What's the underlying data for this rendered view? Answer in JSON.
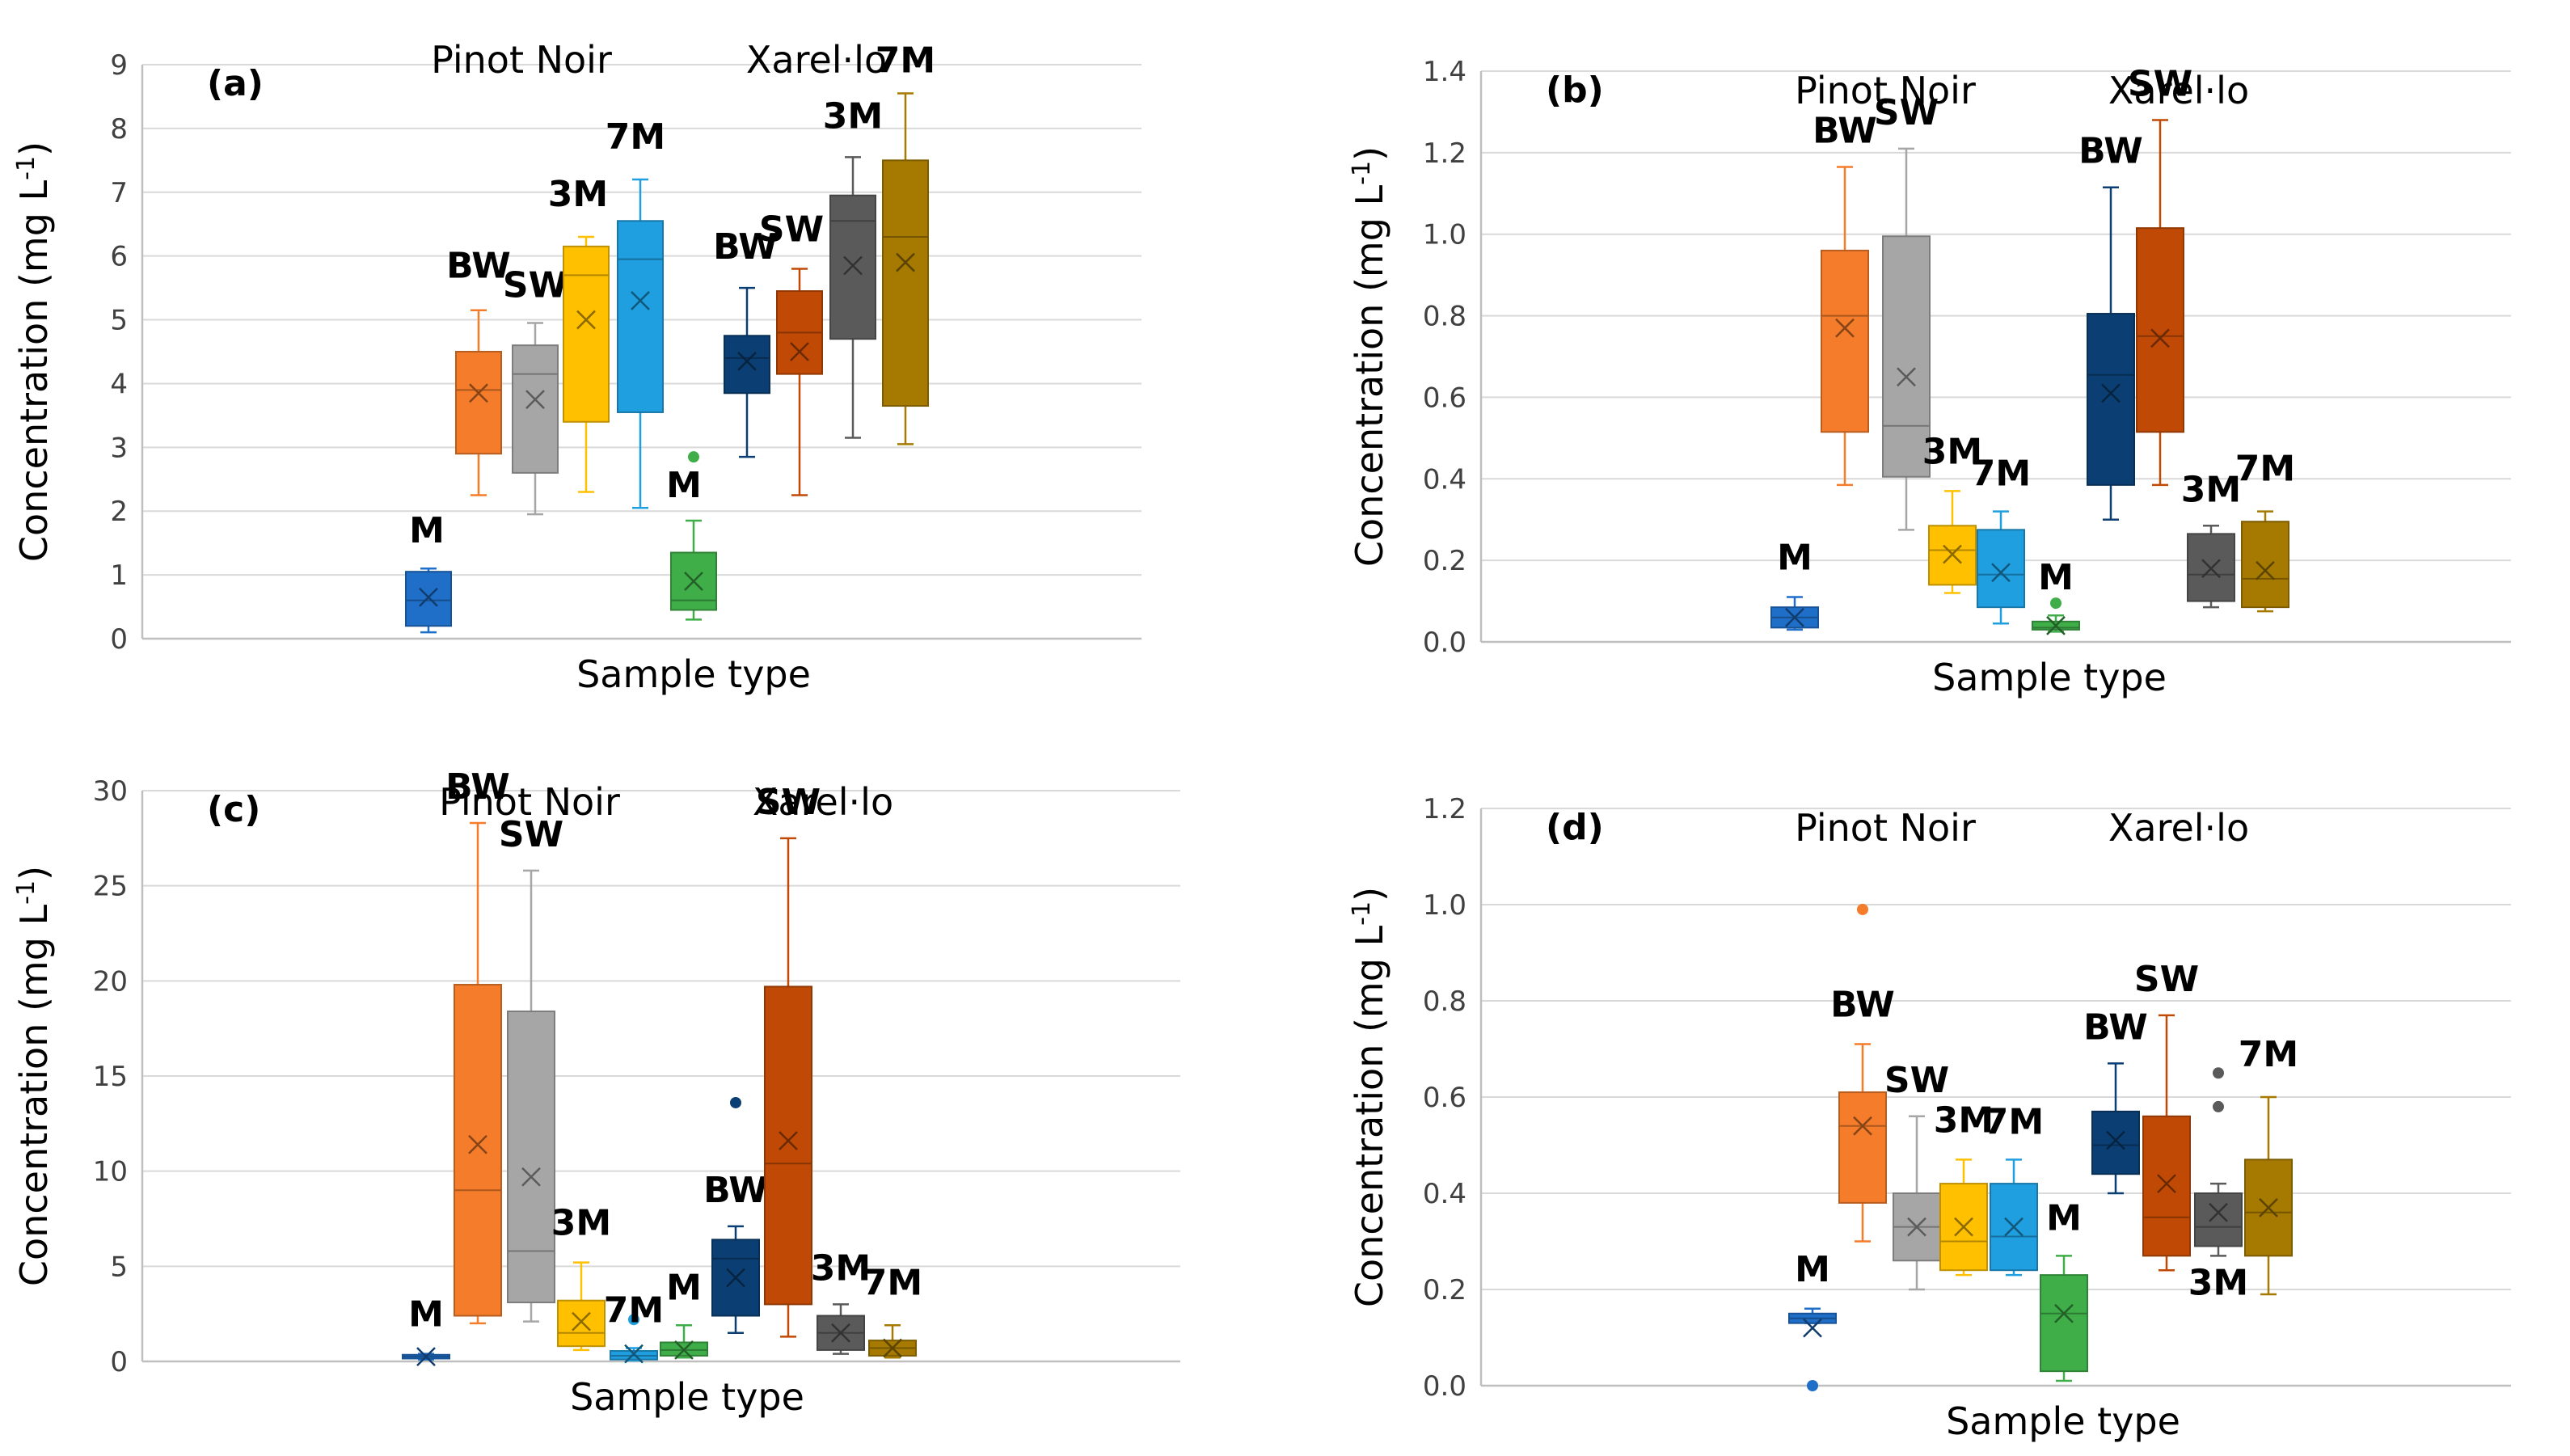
{
  "figure": {
    "colors": {
      "PN-M": "#1f6fc8",
      "PN-BW": "#f47c2a",
      "PN-SW": "#a6a6a6",
      "PN-3M": "#ffc000",
      "PN-7M": "#1f9fe0",
      "X-M": "#3fae49",
      "X-BW": "#0b3f73",
      "X-SW": "#c04a05",
      "X-3M": "#5a5a5a",
      "X-7M": "#a67a00"
    },
    "axis_line_color": "#bfbfbf",
    "grid_color": "#d9d9d9"
  },
  "chart_data": [
    {
      "id": "a",
      "type": "box",
      "panel_label": "(a)",
      "ylabel": "Concentration (mg L-1)",
      "ylabel_parts": [
        "Concentration (mg L",
        "-1",
        ")"
      ],
      "xlabel": "Sample type",
      "group_titles": [
        "Pinot Noir",
        "Xarel·lo"
      ],
      "ylim": [
        0,
        9
      ],
      "yticks": [
        0,
        1,
        2,
        3,
        4,
        5,
        6,
        7,
        8,
        9
      ],
      "ytick_labels": [
        "0",
        "1",
        "2",
        "3",
        "4",
        "5",
        "6",
        "7",
        "8",
        "9"
      ],
      "boxes": [
        {
          "key": "PN-M",
          "label": "M",
          "min": 0.1,
          "q1": 0.2,
          "median": 0.6,
          "q3": 1.05,
          "max": 1.1,
          "mean": 0.65,
          "outliers": []
        },
        {
          "key": "PN-BW",
          "label": "BW",
          "min": 2.25,
          "q1": 2.9,
          "median": 3.9,
          "q3": 4.5,
          "max": 5.15,
          "mean": 3.85,
          "outliers": []
        },
        {
          "key": "PN-SW",
          "label": "SW",
          "min": 1.95,
          "q1": 2.6,
          "median": 4.15,
          "q3": 4.6,
          "max": 4.95,
          "mean": 3.75,
          "outliers": []
        },
        {
          "key": "PN-3M",
          "label": "3M",
          "min": 2.3,
          "q1": 3.4,
          "median": 5.7,
          "q3": 6.15,
          "max": 6.3,
          "mean": 5.0,
          "outliers": []
        },
        {
          "key": "PN-7M",
          "label": "7M",
          "min": 2.05,
          "q1": 3.55,
          "median": 5.95,
          "q3": 6.55,
          "max": 7.2,
          "mean": 5.3,
          "outliers": []
        },
        {
          "key": "X-M",
          "label": "M",
          "min": 0.3,
          "q1": 0.45,
          "median": 0.6,
          "q3": 1.35,
          "max": 1.85,
          "mean": 0.9,
          "outliers": [
            2.85
          ]
        },
        {
          "key": "X-BW",
          "label": "BW",
          "min": 2.85,
          "q1": 3.85,
          "median": 4.4,
          "q3": 4.75,
          "max": 5.5,
          "mean": 4.35,
          "outliers": []
        },
        {
          "key": "X-SW",
          "label": "SW",
          "min": 2.25,
          "q1": 4.15,
          "median": 4.8,
          "q3": 5.45,
          "max": 5.8,
          "mean": 4.5,
          "outliers": []
        },
        {
          "key": "X-3M",
          "label": "3M",
          "min": 3.15,
          "q1": 4.7,
          "median": 6.55,
          "q3": 6.95,
          "max": 7.55,
          "mean": 5.85,
          "outliers": []
        },
        {
          "key": "X-7M",
          "label": "7M",
          "min": 3.05,
          "q1": 3.65,
          "median": 6.3,
          "q3": 7.5,
          "max": 8.55,
          "mean": 5.9,
          "outliers": []
        }
      ]
    },
    {
      "id": "b",
      "type": "box",
      "panel_label": "(b)",
      "ylabel": "Concentration (mg L-1)",
      "ylabel_parts": [
        "Concentration (mg L",
        "-1",
        ")"
      ],
      "xlabel": "Sample type",
      "group_titles": [
        "Pinot Noir",
        "Xarel·lo"
      ],
      "ylim": [
        0,
        1.4
      ],
      "yticks": [
        0,
        0.2,
        0.4,
        0.6,
        0.8,
        1.0,
        1.2,
        1.4
      ],
      "ytick_labels": [
        "0.0",
        "0.2",
        "0.4",
        "0.6",
        "0.8",
        "1.0",
        "1.2",
        "1.4"
      ],
      "boxes": [
        {
          "key": "PN-M",
          "label": "M",
          "min": 0.03,
          "q1": 0.035,
          "median": 0.06,
          "q3": 0.085,
          "max": 0.11,
          "mean": 0.06,
          "outliers": []
        },
        {
          "key": "PN-BW",
          "label": "BW",
          "min": 0.385,
          "q1": 0.515,
          "median": 0.8,
          "q3": 0.96,
          "max": 1.165,
          "mean": 0.77,
          "outliers": []
        },
        {
          "key": "PN-SW",
          "label": "SW",
          "min": 0.275,
          "q1": 0.405,
          "median": 0.53,
          "q3": 0.995,
          "max": 1.21,
          "mean": 0.65,
          "outliers": []
        },
        {
          "key": "PN-3M",
          "label": "3M",
          "min": 0.12,
          "q1": 0.14,
          "median": 0.225,
          "q3": 0.285,
          "max": 0.37,
          "mean": 0.215,
          "outliers": []
        },
        {
          "key": "PN-7M",
          "label": "7M",
          "min": 0.045,
          "q1": 0.085,
          "median": 0.165,
          "q3": 0.275,
          "max": 0.32,
          "mean": 0.17,
          "outliers": []
        },
        {
          "key": "X-M",
          "label": "M",
          "min": 0.025,
          "q1": 0.03,
          "median": 0.035,
          "q3": 0.05,
          "max": 0.065,
          "mean": 0.04,
          "outliers": [
            0.095
          ]
        },
        {
          "key": "X-BW",
          "label": "BW",
          "min": 0.3,
          "q1": 0.385,
          "median": 0.655,
          "q3": 0.805,
          "max": 1.115,
          "mean": 0.61,
          "outliers": []
        },
        {
          "key": "X-SW",
          "label": "SW",
          "min": 0.385,
          "q1": 0.515,
          "median": 0.75,
          "q3": 1.015,
          "max": 1.28,
          "mean": 0.745,
          "outliers": []
        },
        {
          "key": "X-3M",
          "label": "3M",
          "min": 0.085,
          "q1": 0.1,
          "median": 0.165,
          "q3": 0.265,
          "max": 0.285,
          "mean": 0.18,
          "outliers": []
        },
        {
          "key": "X-7M",
          "label": "7M",
          "min": 0.075,
          "q1": 0.085,
          "median": 0.155,
          "q3": 0.295,
          "max": 0.32,
          "mean": 0.175,
          "outliers": []
        }
      ]
    },
    {
      "id": "c",
      "type": "box",
      "panel_label": "(c)",
      "ylabel": "Concentration (mg L-1)",
      "ylabel_parts": [
        "Concentration (mg L",
        "-1",
        ")"
      ],
      "xlabel": "Sample type",
      "group_titles": [
        "Pinot Noir",
        "Xarel·lo"
      ],
      "ylim": [
        0,
        30
      ],
      "yticks": [
        0,
        5,
        10,
        15,
        20,
        25,
        30
      ],
      "ytick_labels": [
        "0",
        "5",
        "10",
        "15",
        "20",
        "25",
        "30"
      ],
      "boxes": [
        {
          "key": "PN-M",
          "label": "M",
          "min": 0.1,
          "q1": 0.15,
          "median": 0.25,
          "q3": 0.35,
          "max": 0.4,
          "mean": 0.25,
          "outliers": []
        },
        {
          "key": "PN-BW",
          "label": "BW",
          "min": 2.0,
          "q1": 2.4,
          "median": 9.0,
          "q3": 19.8,
          "max": 28.3,
          "mean": 11.4,
          "outliers": []
        },
        {
          "key": "PN-SW",
          "label": "SW",
          "min": 2.1,
          "q1": 3.1,
          "median": 5.8,
          "q3": 18.4,
          "max": 25.8,
          "mean": 9.7,
          "outliers": []
        },
        {
          "key": "PN-3M",
          "label": "3M",
          "min": 0.6,
          "q1": 0.8,
          "median": 1.5,
          "q3": 3.2,
          "max": 5.2,
          "mean": 2.1,
          "outliers": []
        },
        {
          "key": "PN-7M",
          "label": "7M",
          "min": 0.05,
          "q1": 0.1,
          "median": 0.3,
          "q3": 0.55,
          "max": 0.7,
          "mean": 0.4,
          "outliers": [
            2.2
          ]
        },
        {
          "key": "X-M",
          "label": "M",
          "min": 0.2,
          "q1": 0.3,
          "median": 0.6,
          "q3": 1.0,
          "max": 1.9,
          "mean": 0.6,
          "outliers": []
        },
        {
          "key": "X-BW",
          "label": "BW",
          "min": 1.5,
          "q1": 2.4,
          "median": 5.4,
          "q3": 6.4,
          "max": 7.1,
          "mean": 4.4,
          "outliers": [
            13.6
          ]
        },
        {
          "key": "X-SW",
          "label": "SW",
          "min": 1.3,
          "q1": 3.0,
          "median": 10.4,
          "q3": 19.7,
          "max": 27.5,
          "mean": 11.6,
          "outliers": []
        },
        {
          "key": "X-3M",
          "label": "3M",
          "min": 0.4,
          "q1": 0.6,
          "median": 1.5,
          "q3": 2.4,
          "max": 3.0,
          "mean": 1.5,
          "outliers": []
        },
        {
          "key": "X-7M",
          "label": "7M",
          "min": 0.2,
          "q1": 0.3,
          "median": 0.7,
          "q3": 1.1,
          "max": 1.9,
          "mean": 0.7,
          "outliers": []
        }
      ]
    },
    {
      "id": "d",
      "type": "box",
      "panel_label": "(d)",
      "ylabel": "Concentration (mg L-1)",
      "ylabel_parts": [
        "Concentration (mg L",
        "-1",
        ")"
      ],
      "xlabel": "Sample type",
      "group_titles": [
        "Pinot Noir",
        "Xarel·lo"
      ],
      "ylim": [
        0,
        1.2
      ],
      "yticks": [
        0,
        0.2,
        0.4,
        0.6,
        0.8,
        1.0,
        1.2
      ],
      "ytick_labels": [
        "0.0",
        "0.2",
        "0.4",
        "0.6",
        "0.8",
        "1.0",
        "1.2"
      ],
      "boxes": [
        {
          "key": "PN-M",
          "label": "M",
          "min": 0.13,
          "q1": 0.13,
          "median": 0.14,
          "q3": 0.15,
          "max": 0.16,
          "mean": 0.12,
          "outliers": [
            0.0
          ]
        },
        {
          "key": "PN-BW",
          "label": "BW",
          "min": 0.3,
          "q1": 0.38,
          "median": 0.54,
          "q3": 0.61,
          "max": 0.71,
          "mean": 0.54,
          "outliers": [
            0.99
          ]
        },
        {
          "key": "PN-SW",
          "label": "SW",
          "min": 0.2,
          "q1": 0.26,
          "median": 0.33,
          "q3": 0.4,
          "max": 0.56,
          "mean": 0.33,
          "outliers": []
        },
        {
          "key": "PN-3M",
          "label": "3M",
          "min": 0.23,
          "q1": 0.24,
          "median": 0.3,
          "q3": 0.42,
          "max": 0.47,
          "mean": 0.33,
          "outliers": []
        },
        {
          "key": "PN-7M",
          "label": "7M",
          "min": 0.23,
          "q1": 0.24,
          "median": 0.31,
          "q3": 0.42,
          "max": 0.47,
          "mean": 0.33,
          "outliers": []
        },
        {
          "key": "X-M",
          "label": "M",
          "min": 0.01,
          "q1": 0.03,
          "median": 0.15,
          "q3": 0.23,
          "max": 0.27,
          "mean": 0.15,
          "outliers": []
        },
        {
          "key": "X-BW",
          "label": "BW",
          "min": 0.4,
          "q1": 0.44,
          "median": 0.5,
          "q3": 0.57,
          "max": 0.67,
          "mean": 0.51,
          "outliers": []
        },
        {
          "key": "X-SW",
          "label": "SW",
          "min": 0.24,
          "q1": 0.27,
          "median": 0.35,
          "q3": 0.56,
          "max": 0.77,
          "mean": 0.42,
          "outliers": []
        },
        {
          "key": "X-3M",
          "label": "3M",
          "min": 0.27,
          "q1": 0.29,
          "median": 0.33,
          "q3": 0.4,
          "max": 0.42,
          "mean": 0.36,
          "outliers": [
            0.58,
            0.65
          ]
        },
        {
          "key": "X-7M",
          "label": "7M",
          "min": 0.19,
          "q1": 0.27,
          "median": 0.36,
          "q3": 0.47,
          "max": 0.6,
          "mean": 0.37,
          "outliers": []
        }
      ]
    }
  ]
}
